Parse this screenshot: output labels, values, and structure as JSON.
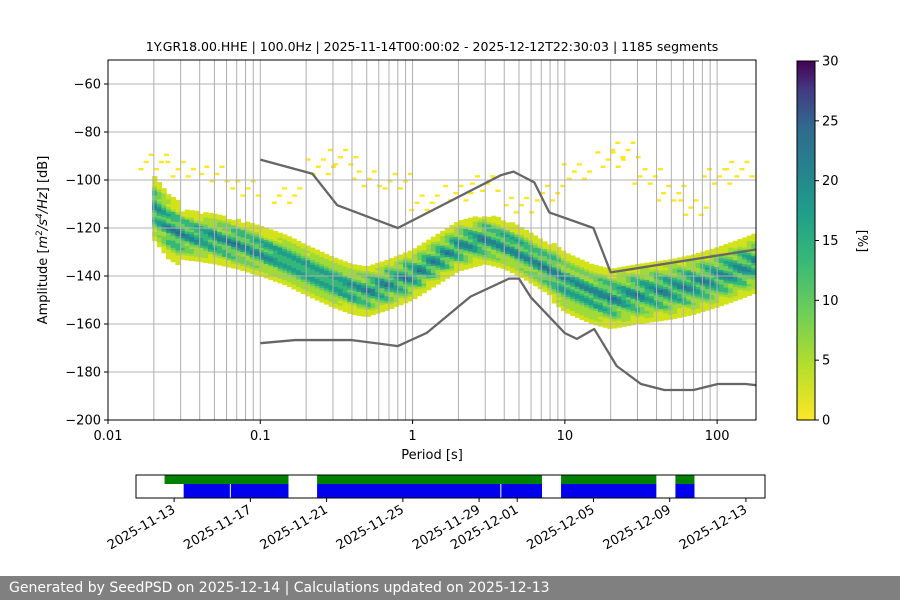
{
  "chart_data": [
    {
      "type": "heatmap",
      "title": "1Y.GR18.00.HHE | 100.0Hz | 2025-11-14T00:00:02 - 2025-12-12T22:30:03 | 1185 segments",
      "xlabel": "Period [s]",
      "ylabel": "Amplitude [m²/s⁴/Hz] [dB]",
      "x_scale": "log",
      "xlim": [
        0.01,
        180
      ],
      "ylim": [
        -200,
        -50
      ],
      "x_ticks": [
        0.01,
        0.1,
        1,
        10,
        100
      ],
      "x_tick_labels": [
        "0.01",
        "0.1",
        "1",
        "10",
        "100"
      ],
      "y_ticks": [
        -200,
        -180,
        -160,
        -140,
        -120,
        -100,
        -80,
        -60
      ],
      "y_tick_labels": [
        "−200",
        "−180",
        "−160",
        "−140",
        "−120",
        "−100",
        "−80",
        "−60"
      ],
      "grid": true,
      "colormap": "viridis_r",
      "colorbar": {
        "label": "[%]",
        "range": [
          0,
          30
        ],
        "ticks": [
          0,
          5,
          10,
          15,
          20,
          25,
          30
        ]
      },
      "psd_mode": {
        "x": [
          0.02,
          0.025,
          0.03,
          0.04,
          0.05,
          0.07,
          0.1,
          0.15,
          0.2,
          0.3,
          0.4,
          0.5,
          0.7,
          1.0,
          1.5,
          2.0,
          3.0,
          4.0,
          5.0,
          6.0,
          8.0,
          10,
          15,
          20,
          30,
          50,
          70,
          100,
          150,
          180
        ],
        "y": [
          -112,
          -120,
          -123,
          -124,
          -125,
          -127,
          -130,
          -134,
          -138,
          -143,
          -146,
          -147,
          -144,
          -140,
          -133,
          -128,
          -125,
          -127,
          -130,
          -133,
          -138,
          -143,
          -148,
          -150,
          -148,
          -146,
          -144,
          -141,
          -137,
          -135
        ]
      },
      "nhnm": {
        "x": [
          0.1,
          0.22,
          0.32,
          0.8,
          3.8,
          4.6,
          6.3,
          7.9,
          15.4,
          20,
          354.8
        ],
        "y": [
          -91.5,
          -97.4,
          -110.5,
          -120,
          -98,
          -96.5,
          -101,
          -113.5,
          -120,
          -138.5,
          -126
        ]
      },
      "nlnm": {
        "x": [
          0.1,
          0.17,
          0.4,
          0.8,
          1.24,
          2.4,
          4.3,
          5.0,
          6.0,
          10,
          12,
          15.6,
          21.9,
          31.6,
          45,
          70,
          101,
          154,
          180
        ],
        "y": [
          -168,
          -166.7,
          -166.7,
          -169.2,
          -163.7,
          -148.6,
          -141.1,
          -141.1,
          -149,
          -163.8,
          -166.2,
          -162.1,
          -177.5,
          -185,
          -187.5,
          -187.5,
          -185,
          -185,
          -185.5
        ]
      },
      "vertical_lines": [
        0.02,
        0.03,
        0.04,
        0.05,
        0.06,
        0.07,
        0.08,
        0.09,
        0.1,
        0.2,
        0.3,
        0.4,
        0.5,
        0.6,
        0.7,
        0.8,
        0.9,
        1,
        2,
        3,
        4,
        5,
        6,
        7,
        8,
        9,
        10,
        20,
        30,
        40,
        50,
        60,
        70,
        80,
        90,
        100
      ]
    },
    {
      "type": "timeline",
      "x_range": [
        "2025-11-11",
        "2025-12-14"
      ],
      "x_tick_labels": [
        "2025-11-13",
        "2025-11-17",
        "2025-11-21",
        "2025-11-25",
        "2025-11-29",
        "2025-12-01",
        "2025-12-05",
        "2025-12-09",
        "2025-12-13"
      ],
      "x_tick_dates": [
        "2025-11-13",
        "2025-11-17",
        "2025-11-21",
        "2025-11-25",
        "2025-11-29",
        "2025-12-01",
        "2025-12-05",
        "2025-12-09",
        "2025-12-13"
      ],
      "green_segments": [
        [
          "2025-11-12.5",
          "2025-11-19"
        ],
        [
          "2025-11-20.5",
          "2025-12-02.3"
        ],
        [
          "2025-12-03.3",
          "2025-12-08.3"
        ],
        [
          "2025-12-09.3",
          "2025-12-10.3"
        ]
      ],
      "blue_segments": [
        [
          "2025-11-13.5",
          "2025-11-19"
        ],
        [
          "2025-11-20.5",
          "2025-12-02.3"
        ],
        [
          "2025-12-03.3",
          "2025-12-08.3"
        ],
        [
          "2025-12-09.3",
          "2025-12-10.3"
        ]
      ],
      "colors": {
        "green": "#008000",
        "blue": "#0000ee"
      }
    }
  ],
  "footer": {
    "text": "Generated by SeedPSD on 2025-12-14 | Calculations updated on 2025-12-13"
  },
  "colors": {
    "footer_bg": "#808080",
    "grid": "#b0b0b0",
    "reference_lines": "#666666"
  }
}
